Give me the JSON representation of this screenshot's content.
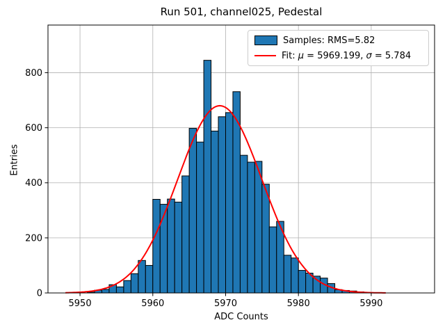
{
  "chart_data": {
    "type": "bar",
    "title": "Run 501, channel025, Pedestal",
    "xlabel": "ADC Counts",
    "ylabel": "Entries",
    "xlim": [
      5945.6,
      5998.7
    ],
    "ylim": [
      0,
      973
    ],
    "xticks": [
      5950,
      5960,
      5970,
      5980,
      5990
    ],
    "yticks": [
      0,
      200,
      400,
      600,
      800
    ],
    "grid": true,
    "legend_position": "upper right",
    "bar_color": "#1f77b4",
    "bar_edge_color": "#000000",
    "fit_color": "#ff0000",
    "grid_color": "#b0b0b0",
    "bin_width": 1,
    "bin_starts": [
      5951,
      5952,
      5953,
      5954,
      5955,
      5956,
      5957,
      5958,
      5959,
      5960,
      5961,
      5962,
      5963,
      5964,
      5965,
      5966,
      5967,
      5968,
      5969,
      5970,
      5971,
      5972,
      5973,
      5974,
      5975,
      5976,
      5977,
      5978,
      5979,
      5980,
      5981,
      5982,
      5983,
      5984,
      5985,
      5986,
      5987,
      5988
    ],
    "values": [
      3,
      10,
      13,
      30,
      22,
      45,
      70,
      118,
      100,
      340,
      322,
      341,
      330,
      425,
      598,
      548,
      845,
      588,
      640,
      655,
      731,
      500,
      475,
      478,
      395,
      240,
      260,
      137,
      127,
      82,
      72,
      61,
      54,
      34,
      12,
      9,
      7,
      4
    ],
    "fit": {
      "mu": 5969.199,
      "sigma": 5.784,
      "amplitude": 680,
      "x_start": 5948,
      "x_end": 5992
    },
    "legend": {
      "samples": "Samples: RMS=5.82",
      "fit_parts": [
        "Fit: ",
        "μ",
        " = 5969.199, ",
        "σ",
        " = 5.784"
      ]
    }
  }
}
